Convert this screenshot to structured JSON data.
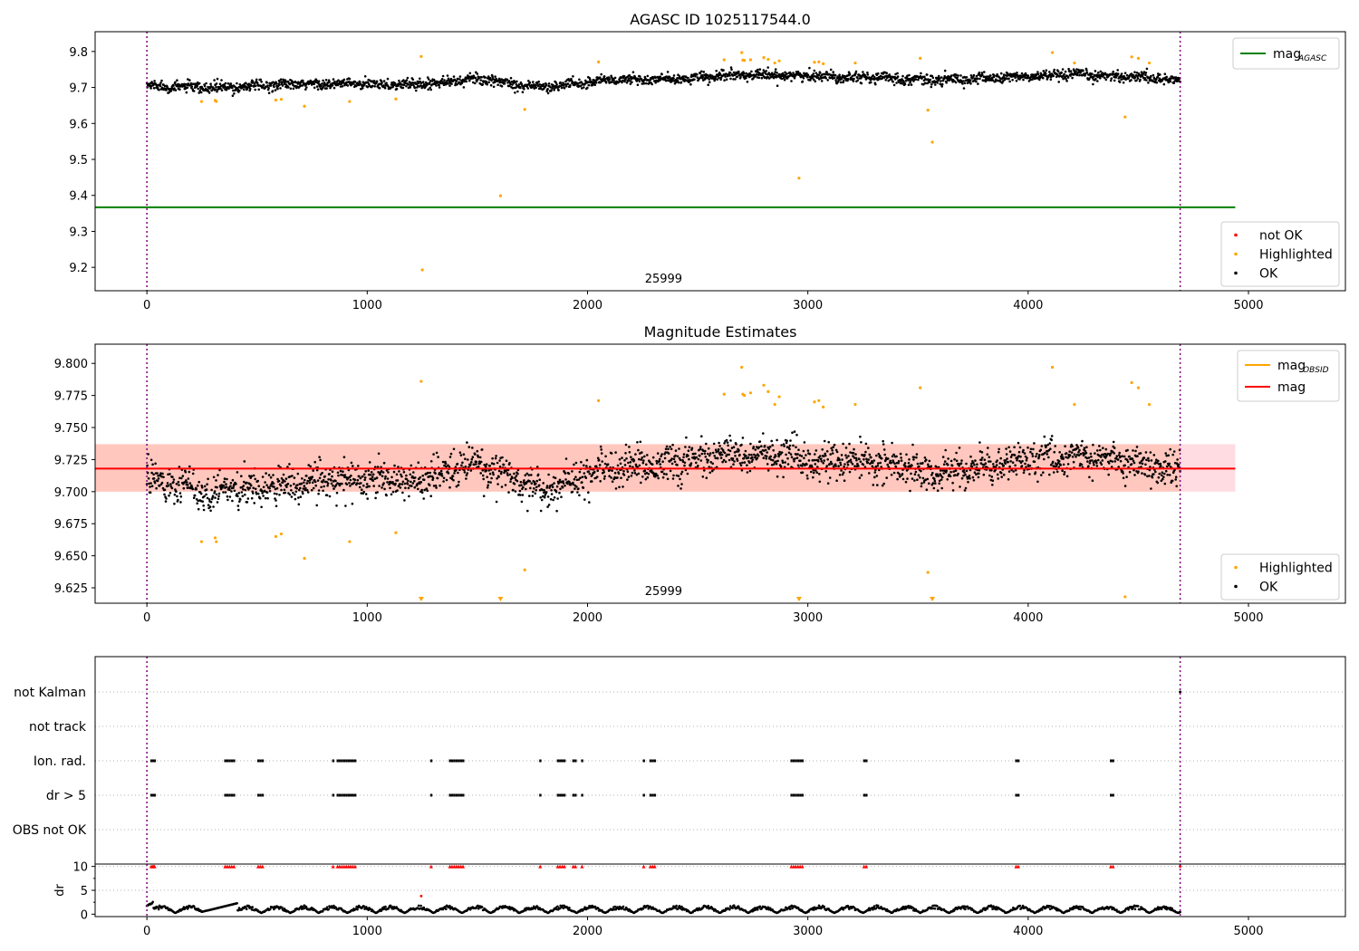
{
  "chart_data": [
    {
      "type": "scatter",
      "title": "AGASC ID 1025117544.0",
      "xlim": [
        -235,
        5440
      ],
      "ylim": [
        9.135,
        9.855
      ],
      "xticks": [
        0,
        1000,
        2000,
        3000,
        4000,
        5000
      ],
      "yticks": [
        9.2,
        9.3,
        9.4,
        9.5,
        9.6,
        9.7,
        9.8
      ],
      "ytick_decimals": 1,
      "vlines": [
        0,
        4690
      ],
      "hline": {
        "name": "mag_AGASC",
        "y": 9.367,
        "x_end": 4940,
        "color": "#008000"
      },
      "obsid_label": {
        "text": "25999",
        "x": 2345
      },
      "legend_top": {
        "position": "top-right",
        "entries": [
          {
            "label": "mag",
            "sub": "AGASC",
            "color": "#008000",
            "kind": "line"
          }
        ]
      },
      "legend_bottom": {
        "position": "lower-right",
        "entries": [
          {
            "label": "not OK",
            "color": "#ff0000",
            "kind": "dot"
          },
          {
            "label": "Highlighted",
            "color": "#ffa500",
            "kind": "dot"
          },
          {
            "label": "OK",
            "color": "#000000",
            "kind": "dot"
          }
        ]
      },
      "ok_series": {
        "name": "OK",
        "color": "#000000",
        "x_range": [
          0,
          4690
        ],
        "n": 2300,
        "trend_x": [
          0,
          300,
          600,
          900,
          1200,
          1500,
          1800,
          2100,
          2400,
          2700,
          3000,
          3300,
          3600,
          3900,
          4200,
          4500,
          4690
        ],
        "trend_y": [
          9.705,
          9.698,
          9.708,
          9.71,
          9.708,
          9.724,
          9.7,
          9.722,
          9.722,
          9.735,
          9.733,
          9.728,
          9.72,
          9.728,
          9.735,
          9.73,
          9.72
        ],
        "scatter": 0.012
      },
      "highlighted": {
        "name": "Highlighted",
        "color": "#ffa500",
        "x": [
          248,
          310,
          315,
          585,
          610,
          715,
          920,
          1130,
          1245,
          1250,
          1605,
          1715,
          2050,
          2620,
          2700,
          2705,
          2712,
          2740,
          2800,
          2820,
          2850,
          2870,
          2960,
          3030,
          3050,
          3070,
          3215,
          3510,
          3545,
          3565,
          4110,
          4210,
          4440,
          4470,
          4500,
          4550
        ],
        "y": [
          9.661,
          9.664,
          9.661,
          9.665,
          9.667,
          9.648,
          9.661,
          9.668,
          9.786,
          9.193,
          9.399,
          9.639,
          9.771,
          9.777,
          9.797,
          9.776,
          9.775,
          9.777,
          9.783,
          9.778,
          9.768,
          9.774,
          9.448,
          9.77,
          9.771,
          9.766,
          9.768,
          9.781,
          9.637,
          9.548,
          9.797,
          9.768,
          9.618,
          9.785,
          9.781,
          9.768
        ]
      }
    },
    {
      "type": "scatter",
      "title": "Magnitude Estimates",
      "xlim": [
        -235,
        5440
      ],
      "ylim": [
        9.613,
        9.815
      ],
      "xticks": [
        0,
        1000,
        2000,
        3000,
        4000,
        5000
      ],
      "yticks": [
        9.625,
        9.65,
        9.675,
        9.7,
        9.725,
        9.75,
        9.775,
        9.8
      ],
      "ytick_decimals": 3,
      "vlines": [
        0,
        4690
      ],
      "band": {
        "y0": 9.7,
        "y1": 9.737,
        "x_end": 4940
      },
      "obsid_band": {
        "y0": 9.7,
        "y1": 9.737,
        "x_end": 4690
      },
      "mag_line": {
        "name": "mag",
        "y": 9.718,
        "x_end": 4940,
        "color": "#ff0000"
      },
      "obsid_line": {
        "name": "mag_OBSID",
        "y": 9.718,
        "x_end": 4690,
        "color": "#ffa500"
      },
      "obsid_label": {
        "text": "25999",
        "x": 2345
      },
      "legend_top": {
        "position": "top-right",
        "entries": [
          {
            "label": "mag",
            "sub": "OBSID",
            "color": "#ffa500",
            "kind": "line"
          },
          {
            "label": "mag",
            "sub": "",
            "color": "#ff0000",
            "kind": "line"
          }
        ]
      },
      "legend_bottom": {
        "position": "lower-right",
        "entries": [
          {
            "label": "Highlighted",
            "color": "#ffa500",
            "kind": "dot"
          },
          {
            "label": "OK",
            "color": "#000000",
            "kind": "dot"
          }
        ]
      },
      "ok_series": {
        "name": "OK",
        "color": "#000000",
        "x_range": [
          0,
          4690
        ],
        "n": 2300,
        "trend_x": [
          0,
          300,
          600,
          900,
          1200,
          1500,
          1800,
          2100,
          2400,
          2700,
          3000,
          3300,
          3600,
          3900,
          4200,
          4500,
          4690
        ],
        "trend_y": [
          9.708,
          9.698,
          9.706,
          9.71,
          9.708,
          9.722,
          9.7,
          9.72,
          9.722,
          9.73,
          9.725,
          9.722,
          9.714,
          9.722,
          9.728,
          9.722,
          9.715
        ],
        "scatter": 0.011
      },
      "highlighted": {
        "name": "Highlighted",
        "color": "#ffa500",
        "x": [
          248,
          310,
          315,
          585,
          610,
          715,
          920,
          1130,
          1245,
          1715,
          2050,
          2620,
          2700,
          2705,
          2712,
          2740,
          2800,
          2820,
          2850,
          2870,
          3030,
          3050,
          3070,
          3215,
          3510,
          3545,
          4110,
          4210,
          4440,
          4470,
          4500,
          4550
        ],
        "y": [
          9.661,
          9.664,
          9.661,
          9.665,
          9.667,
          9.648,
          9.661,
          9.668,
          9.786,
          9.639,
          9.771,
          9.776,
          9.797,
          9.776,
          9.775,
          9.777,
          9.783,
          9.778,
          9.768,
          9.774,
          9.77,
          9.771,
          9.766,
          9.768,
          9.781,
          9.637,
          9.797,
          9.768,
          9.618,
          9.785,
          9.781,
          9.768
        ]
      },
      "out_of_range": {
        "x": [
          1245,
          1605,
          2960,
          3565
        ],
        "color": "#ffa500"
      }
    },
    {
      "type": "scatter",
      "title": "",
      "xlim": [
        -235,
        5440
      ],
      "flag_rows": [
        "not Kalman",
        "not track",
        "Ion. rad.",
        "dr > 5",
        "OBS not OK"
      ],
      "flag_times": [
        20,
        25,
        30,
        35,
        355,
        365,
        375,
        385,
        395,
        505,
        515,
        525,
        845,
        865,
        875,
        885,
        895,
        905,
        915,
        925,
        935,
        945,
        1290,
        1375,
        1385,
        1395,
        1405,
        1415,
        1425,
        1435,
        1785,
        1865,
        1875,
        1885,
        1895,
        1935,
        1945,
        1975,
        2255,
        2285,
        2295,
        2305,
        2925,
        2935,
        2945,
        2955,
        2965,
        2975,
        3255,
        3265,
        3945,
        3955,
        4375,
        4385
      ],
      "not_kalman_times": [
        4690
      ],
      "vlines": [
        0,
        4690
      ]
    },
    {
      "type": "scatter",
      "title": "",
      "ylabel": "dr",
      "xlim": [
        -235,
        5440
      ],
      "ylim": [
        -0.5,
        10.5
      ],
      "xticks": [
        0,
        1000,
        2000,
        3000,
        4000,
        5000
      ],
      "yticks": [
        0,
        5,
        10
      ],
      "vlines": [
        0,
        4690
      ],
      "dr_outlier": {
        "x": 1245,
        "y": 3.8
      },
      "dr_clip_value": 10
    }
  ],
  "colors": {
    "ok": "#000000",
    "highlighted": "#ffa500",
    "not_ok": "#ff0000",
    "agasc_line": "#008000",
    "mag_line": "#ff0000",
    "band": "#ffc0cb",
    "obsid_band": "#ffa07a",
    "vline": "#800080",
    "grid": "#b0b0b0"
  }
}
